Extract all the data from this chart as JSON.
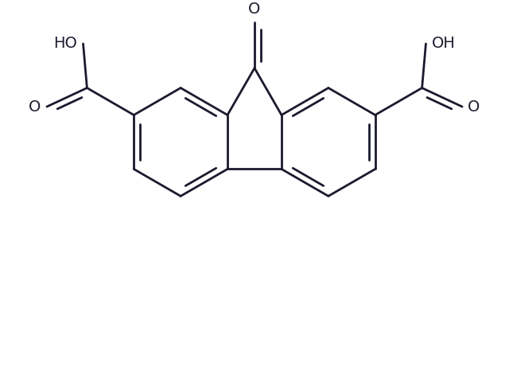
{
  "bg_color": "#ffffff",
  "line_color": "#1a1a2e",
  "line_width": 2.0,
  "figsize": [
    6.4,
    4.7
  ],
  "dpi": 100,
  "font_size": 14,
  "atom_color": "#1a1a2e",
  "xlim": [
    -3.5,
    3.5
  ],
  "ylim": [
    -2.8,
    2.2
  ]
}
